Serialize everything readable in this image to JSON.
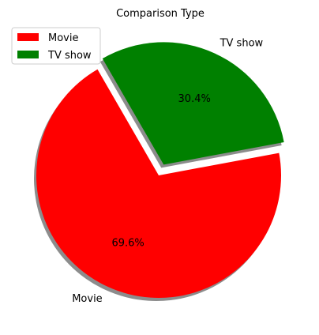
{
  "chart_data": {
    "type": "pie",
    "title": "Comparison Type",
    "categories": [
      "Movie",
      "TV show"
    ],
    "values": [
      69.6,
      30.4
    ],
    "value_labels": [
      "69.6%",
      "30.4%"
    ],
    "colors": [
      "#ff0000",
      "#008000"
    ],
    "exploded": [
      false,
      true
    ],
    "shadow": true,
    "legend_placement": "top-left",
    "legend": [
      "Movie",
      "TV show"
    ]
  }
}
